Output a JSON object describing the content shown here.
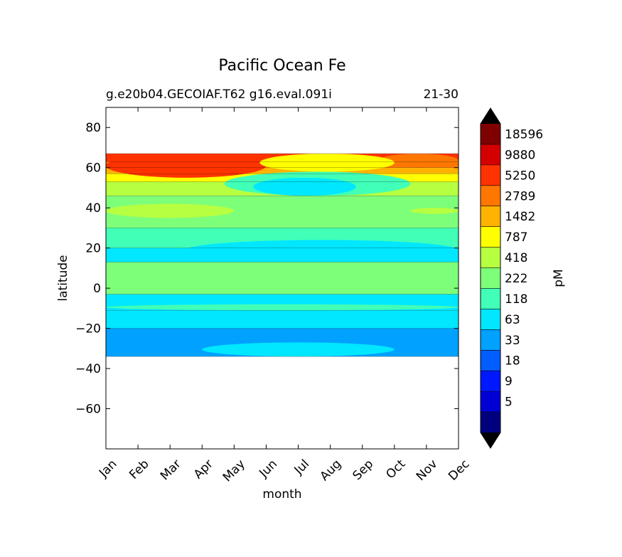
{
  "chart_data": {
    "type": "heatmap",
    "title": "Pacific Ocean Fe",
    "subtitle_left": "g.e20b04.GECOIAF.T62 g16.eval.091i",
    "subtitle_right": "21-30",
    "xlabel": "month",
    "ylabel": "latitude",
    "x_tick_labels": [
      "Jan",
      "Feb",
      "Mar",
      "Apr",
      "May",
      "Jun",
      "Jul",
      "Aug",
      "Sep",
      "Oct",
      "Nov",
      "Dec"
    ],
    "y_ticks": [
      80,
      60,
      40,
      20,
      0,
      -20,
      -40,
      -60
    ],
    "y_tick_labels": [
      "80",
      "60",
      "40",
      "20",
      "0",
      "−20",
      "−40",
      "−60"
    ],
    "ylim": [
      -80,
      90
    ],
    "data_lat_range": [
      -34,
      67
    ],
    "colorbar": {
      "label": "pM",
      "levels_labeled": [
        "18596",
        "9880",
        "5250",
        "2789",
        "1482",
        "787",
        "418",
        "222",
        "118",
        "63",
        "33",
        "18",
        "9",
        "5"
      ],
      "colors_high_to_low": [
        "#7f0000",
        "#d40000",
        "#ff3300",
        "#ff7700",
        "#ffb300",
        "#ffff00",
        "#b7ff41",
        "#7dff7a",
        "#41ffb7",
        "#00e7ff",
        "#00a1ff",
        "#005dff",
        "#0018ff",
        "#0000d4",
        "#00007f"
      ],
      "extend_color": "#000000"
    },
    "bands": [
      {
        "lat_top": 67,
        "lat_bottom": 63,
        "value_class": 2,
        "color": "#ff3300"
      },
      {
        "lat_top": 63,
        "lat_bottom": 60,
        "value_class": 3,
        "color": "#ff7700"
      },
      {
        "lat_top": 60,
        "lat_bottom": 57,
        "value_class": 4,
        "color": "#ffb300"
      },
      {
        "lat_top": 57,
        "lat_bottom": 53,
        "value_class": 5,
        "color": "#ffff00"
      },
      {
        "lat_top": 53,
        "lat_bottom": 46,
        "value_class": 6,
        "color": "#b7ff41"
      },
      {
        "lat_top": 46,
        "lat_bottom": 30,
        "value_class": 7,
        "color": "#7dff7a"
      },
      {
        "lat_top": 30,
        "lat_bottom": 20,
        "value_class": 8,
        "color": "#41ffb7"
      },
      {
        "lat_top": 20,
        "lat_bottom": 13,
        "value_class": 9,
        "color": "#00e7ff"
      },
      {
        "lat_top": 13,
        "lat_bottom": -3,
        "value_class": 7,
        "color": "#7dff7a"
      },
      {
        "lat_top": -3,
        "lat_bottom": -11,
        "value_class": 9,
        "color": "#00e7ff"
      },
      {
        "lat_top": -11,
        "lat_bottom": -20,
        "value_class": 9,
        "color": "#00e7ff"
      },
      {
        "lat_top": -20,
        "lat_bottom": -34,
        "value_class": 10,
        "color": "#00a1ff"
      }
    ],
    "features": [
      {
        "name": "north-high-fe-winter-left",
        "month_range": [
          0,
          5.0
        ],
        "lat_range": [
          55,
          67
        ],
        "color": "#ff3300"
      },
      {
        "name": "north-high-fe-winter-right",
        "month_range": [
          8.5,
          11
        ],
        "lat_range": [
          60,
          67
        ],
        "color": "#ff7700"
      },
      {
        "name": "summer-yellow-north",
        "month_range": [
          4.8,
          9.0
        ],
        "lat_range": [
          58,
          67
        ],
        "color": "#ffff00"
      },
      {
        "name": "summer-green-north",
        "month_range": [
          3.7,
          9.5
        ],
        "lat_range": [
          46,
          58
        ],
        "color": "#41ffb7"
      },
      {
        "name": "summer-low-fe-north",
        "month_range": [
          4.6,
          7.8
        ],
        "lat_range": [
          46,
          55
        ],
        "color": "#00e7ff"
      },
      {
        "name": "lime-band-40n",
        "month_range": [
          0,
          4.0
        ],
        "lat_range": [
          35,
          42
        ],
        "color": "#b7ff41"
      },
      {
        "name": "lime-band-40n-right",
        "month_range": [
          9.5,
          11
        ],
        "lat_range": [
          37,
          40
        ],
        "color": "#b7ff41"
      },
      {
        "name": "tropics-cyan",
        "month_range": [
          2.5,
          11
        ],
        "lat_range": [
          14,
          24
        ],
        "color": "#00e7ff"
      },
      {
        "name": "south-summer-cyan",
        "month_range": [
          3,
          9
        ],
        "lat_range": [
          -34,
          -27
        ],
        "color": "#00e7ff"
      },
      {
        "name": "subtropics-teal-south",
        "month_range": [
          0,
          11
        ],
        "lat_range": [
          -11,
          -8
        ],
        "color": "#41ffb7"
      }
    ]
  }
}
